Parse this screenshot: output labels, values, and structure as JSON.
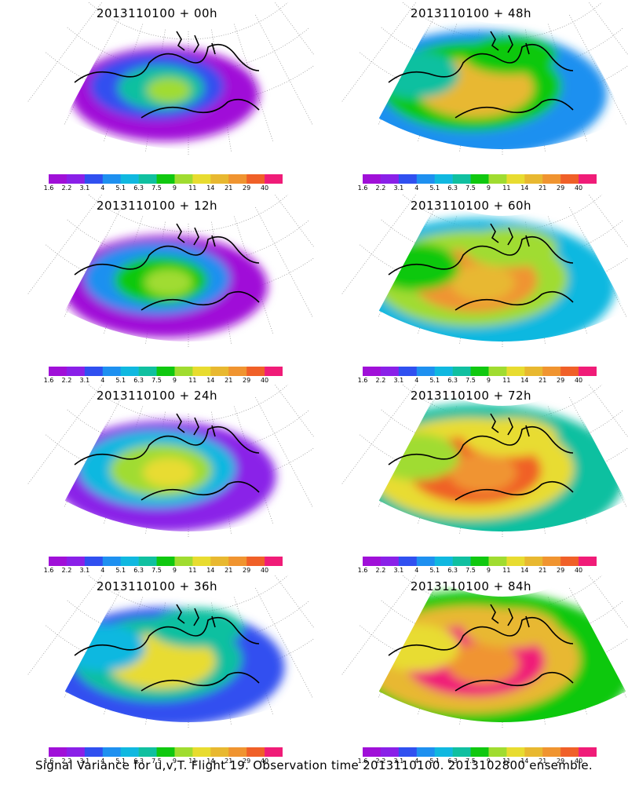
{
  "caption": "Signal Variance for u,v,T. Flight 19. Observation time 2013110100. 2013102800 ensemble.",
  "colorbar": {
    "colors": [
      "#a010d8",
      "#8a20e8",
      "#3050f0",
      "#1e90f0",
      "#10b8e0",
      "#10c0a0",
      "#10c810",
      "#a0dc30",
      "#e8dc30",
      "#e8b830",
      "#f09430",
      "#f06028",
      "#f01c78"
    ],
    "labels": [
      "1.6",
      "2.2",
      "3.1",
      "4",
      "5.1",
      "6.3",
      "7.5",
      "9",
      "11",
      "14",
      "21",
      "29",
      "40"
    ]
  },
  "panels": [
    {
      "title": "2013110100 + 00h",
      "level": 0
    },
    {
      "title": "2013110100 + 48h",
      "level": 4
    },
    {
      "title": "2013110100 + 12h",
      "level": 1
    },
    {
      "title": "2013110100 + 60h",
      "level": 5
    },
    {
      "title": "2013110100 + 24h",
      "level": 2
    },
    {
      "title": "2013110100 + 72h",
      "level": 6
    },
    {
      "title": "2013110100 + 36h",
      "level": 3
    },
    {
      "title": "2013110100 + 84h",
      "level": 7
    }
  ]
}
